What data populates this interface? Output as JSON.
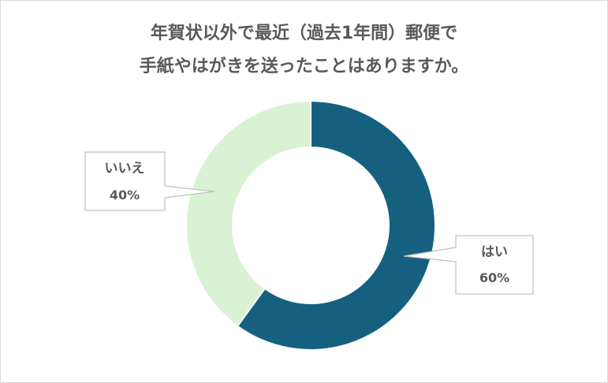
{
  "title": {
    "line1": "年賀状以外で最近（過去1年間）郵便で",
    "line2": "手紙やはがきを送ったことはありますか。"
  },
  "chart_data": {
    "type": "pie",
    "variant": "donut",
    "slices": [
      {
        "label": "はい",
        "value": 60,
        "value_label": "60%",
        "color": "#16607f"
      },
      {
        "label": "いいえ",
        "value": 40,
        "value_label": "40%",
        "color": "#d9f2d3"
      }
    ],
    "start_angle_deg": 0,
    "direction": "clockwise"
  },
  "colors": {
    "text": "#595959",
    "callout_border": "#bfbfbf",
    "frame_border": "#d9d9d9"
  }
}
